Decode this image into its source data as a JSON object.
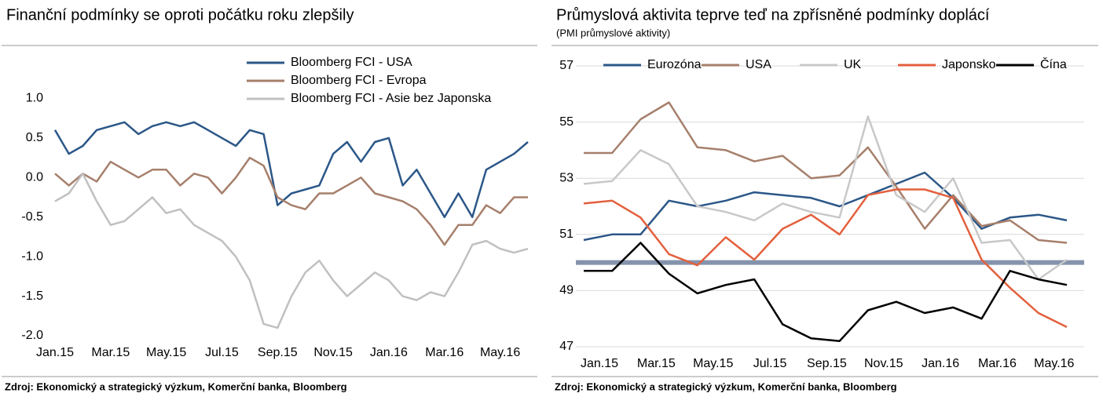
{
  "chart_data": [
    {
      "type": "line",
      "title": "Finanční podmínky se oproti počátku roku zlepšily",
      "footnote": "Zdroj: Ekonomický a strategický výzkum, Komerční banka, Bloomberg",
      "categories": [
        "Jan.15",
        null,
        null,
        null,
        "Mar.15",
        null,
        null,
        null,
        "May.15",
        null,
        null,
        null,
        "Jul.15",
        null,
        null,
        null,
        "Sep.15",
        null,
        null,
        null,
        "Nov.15",
        null,
        null,
        null,
        "Jan.16",
        null,
        null,
        null,
        "Mar.16",
        null,
        null,
        null,
        "May.16",
        null,
        null
      ],
      "ylim": [
        -2,
        1.6
      ],
      "yticks": [
        {
          "value": 1,
          "label": "1.0"
        },
        0.5,
        {
          "value": 0,
          "label": "0.0"
        },
        -0.5,
        {
          "value": -1,
          "label": "-1.0"
        },
        -1.5,
        {
          "value": -2,
          "label": "-2.0"
        }
      ],
      "legend": "top-right",
      "grid": false,
      "series": [
        {
          "name": "Bloomberg FCI - USA",
          "color": "#2b5788",
          "values": [
            0.6,
            0.3,
            0.4,
            0.6,
            0.65,
            0.7,
            0.55,
            0.65,
            0.7,
            0.65,
            0.7,
            0.6,
            0.5,
            0.4,
            0.6,
            0.55,
            -0.35,
            -0.2,
            -0.15,
            -0.1,
            0.3,
            0.45,
            0.2,
            0.45,
            0.5,
            -0.1,
            0.1,
            -0.2,
            -0.5,
            -0.2,
            -0.5,
            0.1,
            0.2,
            0.3,
            0.45
          ]
        },
        {
          "name": "Bloomberg FCI - Evropa",
          "color": "#a67f6b",
          "values": [
            0.05,
            -0.1,
            0.05,
            -0.05,
            0.2,
            0.1,
            0.0,
            0.1,
            0.1,
            -0.1,
            0.05,
            0.0,
            -0.2,
            0.0,
            0.25,
            0.15,
            -0.25,
            -0.35,
            -0.4,
            -0.2,
            -0.2,
            -0.1,
            0.0,
            -0.2,
            -0.25,
            -0.3,
            -0.4,
            -0.6,
            -0.85,
            -0.6,
            -0.6,
            -0.35,
            -0.45,
            -0.25,
            -0.25
          ]
        },
        {
          "name": "Bloomberg FCI - Asie bez Japonska",
          "color": "#c0c0c0",
          "values": [
            -0.3,
            -0.2,
            0.05,
            -0.3,
            -0.6,
            -0.55,
            -0.4,
            -0.25,
            -0.45,
            -0.4,
            -0.6,
            -0.7,
            -0.8,
            -1.0,
            -1.3,
            -1.85,
            -1.9,
            -1.5,
            -1.2,
            -1.05,
            -1.3,
            -1.5,
            -1.35,
            -1.2,
            -1.3,
            -1.5,
            -1.55,
            -1.45,
            -1.5,
            -1.2,
            -0.85,
            -0.8,
            -0.9,
            -0.95,
            -0.9
          ]
        }
      ]
    },
    {
      "type": "line",
      "title": "Průmyslová aktivita teprve teď na zpřísněné podmínky doplácí",
      "subtitle": "(PMI průmyslové aktivity)",
      "footnote": "Zdroj: Ekonomický a strategický výzkum, Komerční banka, Bloomberg",
      "categories": [
        "Jan.15",
        null,
        "Mar.15",
        null,
        "May.15",
        null,
        "Jul.15",
        null,
        "Sep.15",
        null,
        "Nov.15",
        null,
        "Jan.16",
        null,
        "Mar.16",
        null,
        "May.16",
        null
      ],
      "ylim": [
        47,
        57
      ],
      "yticks": [
        47,
        49,
        51,
        53,
        55,
        57
      ],
      "legend": "top",
      "grid": true,
      "reference_line": {
        "value": 50,
        "color": "#8593ad"
      },
      "series": [
        {
          "name": "Eurozóna",
          "color": "#2b5788",
          "values": [
            50.8,
            51.0,
            51.0,
            52.2,
            52.0,
            52.2,
            52.5,
            52.4,
            52.3,
            52.0,
            52.4,
            52.8,
            53.2,
            52.3,
            51.2,
            51.6,
            51.7,
            51.5
          ]
        },
        {
          "name": "USA",
          "color": "#a67f6b",
          "values": [
            53.9,
            53.9,
            55.1,
            55.7,
            54.1,
            54.0,
            53.6,
            53.8,
            53.0,
            53.1,
            54.1,
            52.7,
            51.2,
            52.4,
            51.3,
            51.5,
            50.8,
            50.7
          ]
        },
        {
          "name": "UK",
          "color": "#c8c8c8",
          "values": [
            52.8,
            52.9,
            54.0,
            53.5,
            52.0,
            51.8,
            51.5,
            52.1,
            51.8,
            51.6,
            55.2,
            52.4,
            51.8,
            53.0,
            50.7,
            50.8,
            49.4,
            50.1
          ]
        },
        {
          "name": "Japonsko",
          "color": "#e3603d",
          "values": [
            52.1,
            52.2,
            51.6,
            50.3,
            49.9,
            50.9,
            50.1,
            51.2,
            51.7,
            51.0,
            52.4,
            52.6,
            52.6,
            52.3,
            50.1,
            49.1,
            48.2,
            47.7
          ]
        },
        {
          "name": "Čína",
          "color": "#000000",
          "values": [
            49.7,
            49.7,
            50.7,
            49.6,
            48.9,
            49.2,
            49.4,
            47.8,
            47.3,
            47.2,
            48.3,
            48.6,
            48.2,
            48.4,
            48.0,
            49.7,
            49.4,
            49.2
          ]
        }
      ]
    }
  ]
}
